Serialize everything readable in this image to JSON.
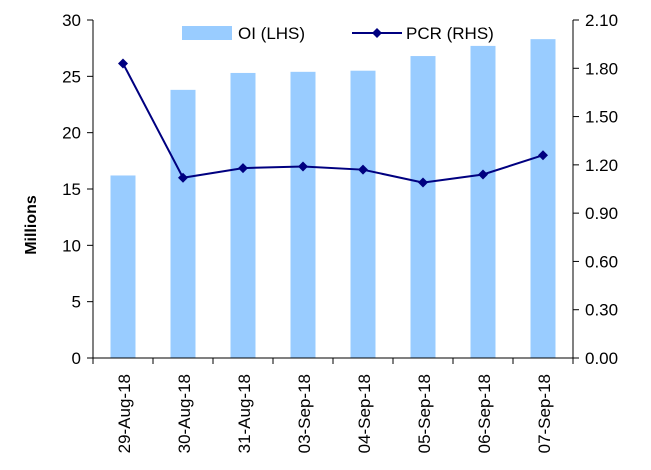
{
  "chart_data": {
    "type": "bar",
    "categories": [
      "29-Aug-18",
      "30-Aug-18",
      "31-Aug-18",
      "03-Sep-18",
      "04-Sep-18",
      "05-Sep-18",
      "06-Sep-18",
      "07-Sep-18"
    ],
    "series": [
      {
        "name": "OI (LHS)",
        "type": "bar",
        "axis": "left",
        "color": "#99CCFF",
        "values": [
          16.2,
          23.8,
          25.3,
          25.4,
          25.5,
          26.8,
          27.7,
          28.3
        ]
      },
      {
        "name": "PCR (RHS)",
        "type": "line",
        "axis": "right",
        "color": "#000080",
        "marker": "diamond",
        "values": [
          1.83,
          1.12,
          1.18,
          1.19,
          1.17,
          1.09,
          1.14,
          1.26
        ]
      }
    ],
    "ylabel": "Millions",
    "ylim": [
      0,
      30
    ],
    "y_ticks": [
      "0",
      "5",
      "10",
      "15",
      "20",
      "25",
      "30"
    ],
    "y2lim": [
      0,
      2.1
    ],
    "y2_ticks": [
      "0.00",
      "0.30",
      "0.60",
      "0.90",
      "1.20",
      "1.50",
      "1.80",
      "2.10"
    ],
    "grid": false,
    "legend": "top"
  }
}
